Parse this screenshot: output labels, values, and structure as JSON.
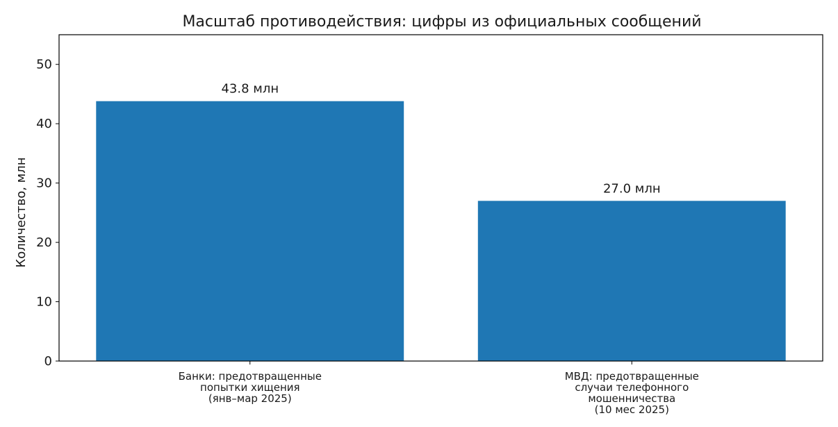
{
  "chart_data": {
    "type": "bar",
    "title": "Масштаб противодействия: цифры из официальных сообщений",
    "xlabel": "",
    "ylabel": "Количество, млн",
    "ylim": [
      0,
      55
    ],
    "yticks": [
      0,
      10,
      20,
      30,
      40,
      50
    ],
    "grid": false,
    "categories": [
      [
        "Банки: предотвращенные",
        "попытки хищения",
        "(янв–мар 2025)"
      ],
      [
        "МВД: предотвращенные",
        "случаи телефонного",
        "мошенничества",
        "(10 мес 2025)"
      ]
    ],
    "values": [
      43.8,
      27.0
    ],
    "data_labels": [
      "43.8 млн",
      "27.0 млн"
    ],
    "bar_color": "#1f77b4"
  }
}
